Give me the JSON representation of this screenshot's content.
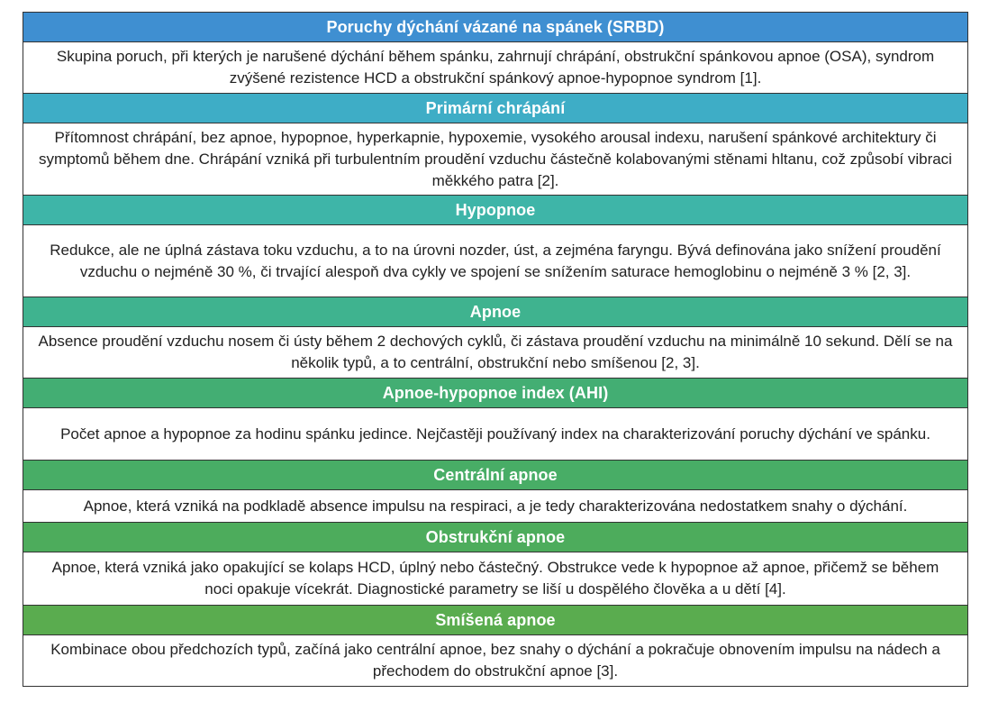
{
  "sections": [
    {
      "heading": "Poruchy dýchání vázané na spánek (SRBD)",
      "color": "#3f8fd1",
      "text": "Skupina poruch, při kterých je narušené dýchání během spánku, zahrnují chrápání, obstrukční spánkovou apnoe (OSA), syndrom zvýšené rezistence HCD a obstrukční spánkový apnoe-hypopnoe syndrom [1]."
    },
    {
      "heading": "Primární chrápání",
      "color": "#3eadc6",
      "text": "Přítomnost chrápání, bez apnoe, hypopnoe, hyperkapnie, hypoxemie, vysokého arousal indexu, narušení spánkové architektury či symptomů během dne. Chrápání vzniká při turbulentním proudění vzduchu částečně kolabovanými stěnami hltanu, což způsobí vibraci měkkého patra [2]."
    },
    {
      "heading": "Hypopnoe",
      "color": "#3eb5a8",
      "text": "Redukce, ale ne úplná zástava toku vzduchu, a to na úrovni nozder, úst, a zejména faryngu. Bývá definována jako snížení proudění vzduchu o nejméně 30 %, či trvající alespoň dva cykly ve spojení se snížením saturace hemoglobinu o nejméně 3 % [2, 3]."
    },
    {
      "heading": "Apnoe",
      "color": "#3fb38f",
      "text": "Absence proudění vzduchu nosem či ústy během 2 dechových cyklů, či zástava proudění vzduchu na minimálně 10 sekund. Dělí se na několik typů, a to centrální, obstrukční nebo smíšenou [2, 3]."
    },
    {
      "heading": "Apnoe-hypopnoe index (AHI)",
      "color": "#43ae73",
      "text": "Počet apnoe a hypopnoe za hodinu spánku jedince. Nejčastěji používaný index na charakterizování poruchy dýchání ve spánku."
    },
    {
      "heading": "Centrální apnoe",
      "color": "#48ad66",
      "text": "Apnoe, která vzniká na podkladě absence impulsu na respiraci, a je tedy charakterizována nedostatkem snahy o dýchání."
    },
    {
      "heading": "Obstrukční apnoe",
      "color": "#4dac5c",
      "text": "Apnoe, která vzniká jako opakující se kolaps HCD, úplný nebo částečný. Obstrukce vede k hypopnoe až apnoe, přičemž se během noci opakuje vícekrát. Diagnostické parametry se liší u dospělého člověka a u dětí [4]."
    },
    {
      "heading": "Smíšená apnoe",
      "color": "#5aac4f",
      "text": "Kombinace obou předchozích typů, začíná jako centrální apnoe, bez snahy o dýchání a pokračuje obnovením impulsu na nádech a přechodem do obstrukční apnoe [3]."
    }
  ]
}
